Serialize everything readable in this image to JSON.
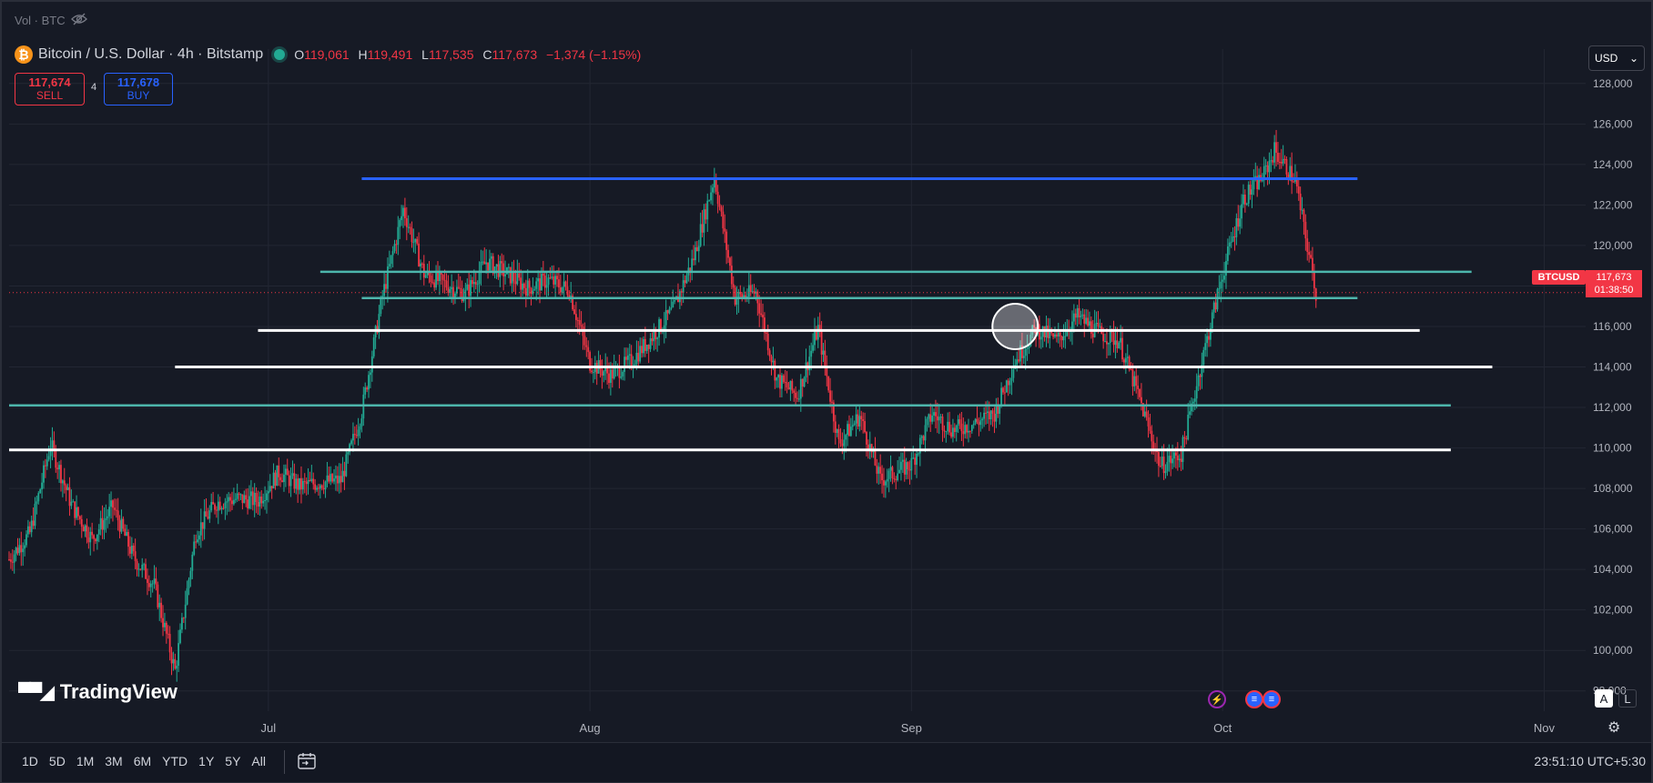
{
  "top_label": "Vol · BTC",
  "legend": {
    "symbol": "Bitcoin / U.S. Dollar · 4h · Bitstamp",
    "o_label": "O",
    "o": "119,061",
    "h_label": "H",
    "h": "119,491",
    "l_label": "L",
    "l": "117,535",
    "c_label": "C",
    "c": "117,673",
    "change": "−1,374 (−1.15%)"
  },
  "trade": {
    "sell_price": "117,674",
    "sell_label": "SELL",
    "spread": "4",
    "buy_price": "117,678",
    "buy_label": "BUY"
  },
  "currency": "USD",
  "price_tag": {
    "symbol": "BTCUSD",
    "price": "117,673",
    "countdown": "01:38:50"
  },
  "logo_text": "TradingView",
  "scale_buttons": {
    "auto": "A",
    "log": "L"
  },
  "ranges": [
    "1D",
    "5D",
    "1M",
    "3M",
    "6M",
    "YTD",
    "1Y",
    "5Y",
    "All"
  ],
  "clock": "23:51:10 UTC+5:30",
  "colors": {
    "background": "#161a25",
    "grid": "#232733",
    "up": "#22ab94",
    "down": "#f23645",
    "level_blue": "#2962ff",
    "level_teal": "#4db6ac",
    "level_white": "#ffffff",
    "axis_text": "#b2b5be"
  },
  "chart_data": {
    "type": "candlestick",
    "title": "Bitcoin / U.S. Dollar · 4h · Bitstamp",
    "y_axis_side": "right",
    "y_range": [
      97000,
      128800
    ],
    "y_ticks": [
      "98,000",
      "100,000",
      "102,000",
      "104,000",
      "106,000",
      "108,000",
      "110,000",
      "112,000",
      "114,000",
      "116,000",
      "118,000",
      "120,000",
      "122,000",
      "124,000",
      "126,000",
      "128,000"
    ],
    "x_range": [
      "2025-06-06",
      "2025-11-05"
    ],
    "x_ticks": [
      {
        "label": "Jul",
        "date": "2025-07-01"
      },
      {
        "label": "Aug",
        "date": "2025-08-01"
      },
      {
        "label": "Sep",
        "date": "2025-09-01"
      },
      {
        "label": "Oct",
        "date": "2025-10-01"
      },
      {
        "label": "Nov",
        "date": "2025-11-01"
      }
    ],
    "current_price": 117673,
    "close_path": [
      {
        "date": "2025-06-06",
        "close": 104500
      },
      {
        "date": "2025-06-08",
        "close": 105800
      },
      {
        "date": "2025-06-10",
        "close": 110200
      },
      {
        "date": "2025-06-12",
        "close": 107200
      },
      {
        "date": "2025-06-14",
        "close": 105500
      },
      {
        "date": "2025-06-16",
        "close": 107100
      },
      {
        "date": "2025-06-18",
        "close": 104600
      },
      {
        "date": "2025-06-20",
        "close": 103200
      },
      {
        "date": "2025-06-22",
        "close": 99000
      },
      {
        "date": "2025-06-24",
        "close": 105800
      },
      {
        "date": "2025-06-26",
        "close": 107300
      },
      {
        "date": "2025-06-28",
        "close": 107500
      },
      {
        "date": "2025-06-30",
        "close": 107400
      },
      {
        "date": "2025-07-02",
        "close": 108800
      },
      {
        "date": "2025-07-04",
        "close": 108100
      },
      {
        "date": "2025-07-06",
        "close": 108300
      },
      {
        "date": "2025-07-08",
        "close": 108400
      },
      {
        "date": "2025-07-10",
        "close": 111800
      },
      {
        "date": "2025-07-12",
        "close": 117500
      },
      {
        "date": "2025-07-14",
        "close": 121800
      },
      {
        "date": "2025-07-16",
        "close": 118600
      },
      {
        "date": "2025-07-18",
        "close": 118100
      },
      {
        "date": "2025-07-20",
        "close": 117600
      },
      {
        "date": "2025-07-22",
        "close": 119200
      },
      {
        "date": "2025-07-24",
        "close": 118600
      },
      {
        "date": "2025-07-26",
        "close": 117900
      },
      {
        "date": "2025-07-28",
        "close": 118300
      },
      {
        "date": "2025-07-30",
        "close": 117800
      },
      {
        "date": "2025-08-01",
        "close": 114200
      },
      {
        "date": "2025-08-03",
        "close": 113600
      },
      {
        "date": "2025-08-05",
        "close": 114300
      },
      {
        "date": "2025-08-07",
        "close": 115500
      },
      {
        "date": "2025-08-09",
        "close": 116800
      },
      {
        "date": "2025-08-11",
        "close": 119400
      },
      {
        "date": "2025-08-13",
        "close": 123400
      },
      {
        "date": "2025-08-15",
        "close": 117400
      },
      {
        "date": "2025-08-17",
        "close": 117700
      },
      {
        "date": "2025-08-19",
        "close": 113400
      },
      {
        "date": "2025-08-21",
        "close": 112600
      },
      {
        "date": "2025-08-23",
        "close": 115900
      },
      {
        "date": "2025-08-25",
        "close": 110200
      },
      {
        "date": "2025-08-27",
        "close": 111600
      },
      {
        "date": "2025-08-29",
        "close": 108400
      },
      {
        "date": "2025-09-01",
        "close": 109200
      },
      {
        "date": "2025-09-03",
        "close": 111700
      },
      {
        "date": "2025-09-05",
        "close": 110900
      },
      {
        "date": "2025-09-07",
        "close": 111200
      },
      {
        "date": "2025-09-09",
        "close": 111700
      },
      {
        "date": "2025-09-11",
        "close": 114300
      },
      {
        "date": "2025-09-13",
        "close": 115900
      },
      {
        "date": "2025-09-15",
        "close": 115300
      },
      {
        "date": "2025-09-17",
        "close": 116500
      },
      {
        "date": "2025-09-19",
        "close": 115700
      },
      {
        "date": "2025-09-21",
        "close": 115300
      },
      {
        "date": "2025-09-23",
        "close": 112400
      },
      {
        "date": "2025-09-25",
        "close": 109100
      },
      {
        "date": "2025-09-27",
        "close": 109700
      },
      {
        "date": "2025-09-29",
        "close": 114300
      },
      {
        "date": "2025-10-01",
        "close": 118600
      },
      {
        "date": "2025-10-03",
        "close": 122300
      },
      {
        "date": "2025-10-05",
        "close": 123500
      },
      {
        "date": "2025-10-06",
        "close": 124700
      },
      {
        "date": "2025-10-08",
        "close": 123200
      },
      {
        "date": "2025-10-10",
        "close": 117673
      }
    ],
    "levels": [
      {
        "color": "blue",
        "price": 123300,
        "from": "2025-07-10",
        "to": "2025-10-14"
      },
      {
        "color": "teal",
        "price": 118700,
        "from": "2025-07-06",
        "to": "2025-10-25"
      },
      {
        "color": "teal",
        "price": 117400,
        "from": "2025-07-10",
        "to": "2025-10-14"
      },
      {
        "color": "white",
        "price": 115800,
        "from": "2025-06-30",
        "to": "2025-10-20"
      },
      {
        "color": "white",
        "price": 114000,
        "from": "2025-06-22",
        "to": "2025-10-27"
      },
      {
        "color": "teal",
        "price": 112100,
        "from": "2025-06-06",
        "to": "2025-10-23"
      },
      {
        "color": "white",
        "price": 109900,
        "from": "2025-06-06",
        "to": "2025-10-23"
      }
    ],
    "highlight_circle": {
      "date": "2025-09-11",
      "price": 116000
    }
  }
}
